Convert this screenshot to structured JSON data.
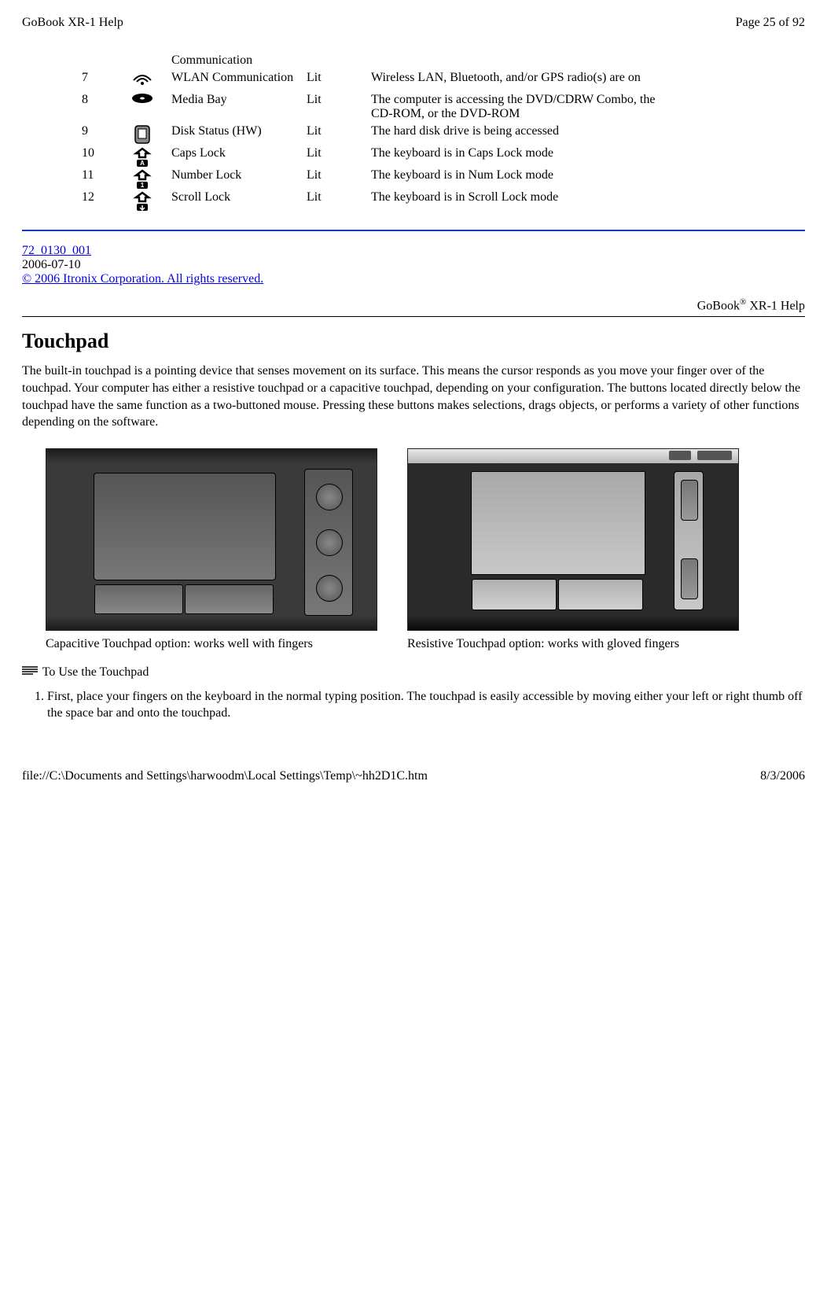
{
  "header": {
    "left": "GoBook XR-1 Help",
    "right": "Page 25 of 92"
  },
  "footer": {
    "left": "file://C:\\Documents and Settings\\harwoodm\\Local Settings\\Temp\\~hh2D1C.htm",
    "right": "8/3/2006"
  },
  "led_table": {
    "pre_row_name": "Communication",
    "rows": [
      {
        "num": "7",
        "icon": "wifi",
        "name": "WLAN Communication",
        "state": "Lit",
        "desc": "Wireless LAN, Bluetooth, and/or GPS radio(s) are on"
      },
      {
        "num": "8",
        "icon": "disc",
        "name": "Media Bay",
        "state": "Lit",
        "desc": "The computer is accessing the DVD/CDRW Combo, the CD-ROM, or the DVD-ROM"
      },
      {
        "num": "9",
        "icon": "hdd",
        "name": "Disk Status (HW)",
        "state": "Lit",
        "desc": "The hard disk drive is being accessed"
      },
      {
        "num": "10",
        "icon": "caps",
        "name": "Caps Lock",
        "state": "Lit",
        "desc": "The keyboard is in Caps Lock mode"
      },
      {
        "num": "11",
        "icon": "num",
        "name": "Number Lock",
        "state": "Lit",
        "desc": "The keyboard is in Num Lock mode"
      },
      {
        "num": "12",
        "icon": "scroll",
        "name": "Scroll Lock",
        "state": "Lit",
        "desc": "The keyboard is in Scroll Lock mode"
      }
    ]
  },
  "doc_ref": {
    "line1": "72_0130_001",
    "line2": "2006-07-10",
    "link": "© 2006 Itronix Corporation. All rights reserved."
  },
  "corner": {
    "prefix": "GoBook",
    "sup": "®",
    "suffix": " XR-1 Help"
  },
  "touchpad": {
    "title": "Touchpad",
    "para": "The built-in touchpad is a pointing device that senses movement on its surface. This means the cursor responds as you move your finger over of the touchpad. Your computer has either a resistive touchpad or a capacitive touchpad, depending on your configuration.  The buttons located directly below the touchpad have the same function as a two-buttoned mouse. Pressing these buttons makes selections, drags objects, or performs a variety of other functions depending on the software.",
    "cap_left": "Capacitive Touchpad option: works well with fingers",
    "cap_right": "Resistive Touchpad option: works with gloved fingers",
    "howto_label": "To Use the Touchpad",
    "steps": [
      "First, place your fingers on the keyboard in the normal typing position. The touchpad is easily accessible by moving either your left or right thumb off the space bar and onto the touchpad."
    ]
  },
  "icons_svg": {
    "wifi": "wifi-icon",
    "disc": "disc-icon",
    "hdd": "hdd-icon",
    "caps": "caps-lock-icon",
    "num": "num-lock-icon",
    "scroll": "scroll-lock-icon"
  },
  "colors": {
    "hr_blue": "#1040c0",
    "link": "#0000ee"
  }
}
